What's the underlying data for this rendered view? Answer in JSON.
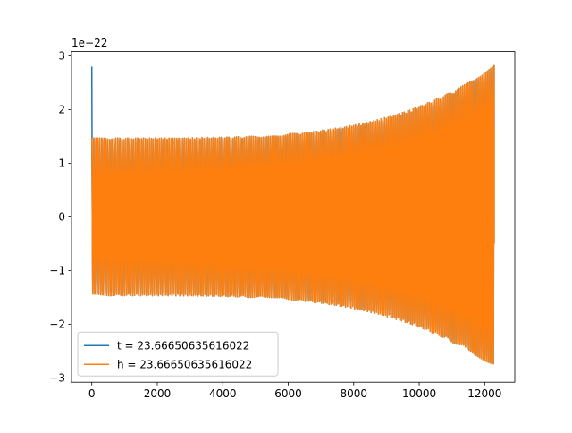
{
  "chart_data": {
    "type": "line",
    "title": "",
    "xlabel": "",
    "ylabel": "",
    "y_offset_label": "1e−22",
    "xlim": [
      -620,
      12920
    ],
    "ylim": [
      -3.08,
      3.08
    ],
    "x_ticks": [
      0,
      2000,
      4000,
      6000,
      8000,
      10000,
      12000
    ],
    "x_tick_labels": [
      "0",
      "2000",
      "4000",
      "6000",
      "8000",
      "10000",
      "12000"
    ],
    "y_ticks": [
      -3,
      -2,
      -1,
      0,
      1,
      2,
      3
    ],
    "y_tick_labels": [
      "−3",
      "−2",
      "−1",
      "0",
      "1",
      "2",
      "3"
    ],
    "grid": false,
    "legend_position": "lower-left",
    "series": [
      {
        "name": "t = 23.66650635616022",
        "color": "#1f77b4",
        "x_start": 0,
        "x_end": 12290,
        "initial_spike": 2.8,
        "envelope_start": 1.47,
        "envelope_end": 2.82,
        "cycles": 200
      },
      {
        "name": "h = 23.66650635616022",
        "color": "#ff7f0e",
        "x_start": 0,
        "x_end": 12290,
        "initial_spike": 0,
        "envelope_start": 1.47,
        "envelope_end": 2.82,
        "cycles": 200
      }
    ]
  }
}
